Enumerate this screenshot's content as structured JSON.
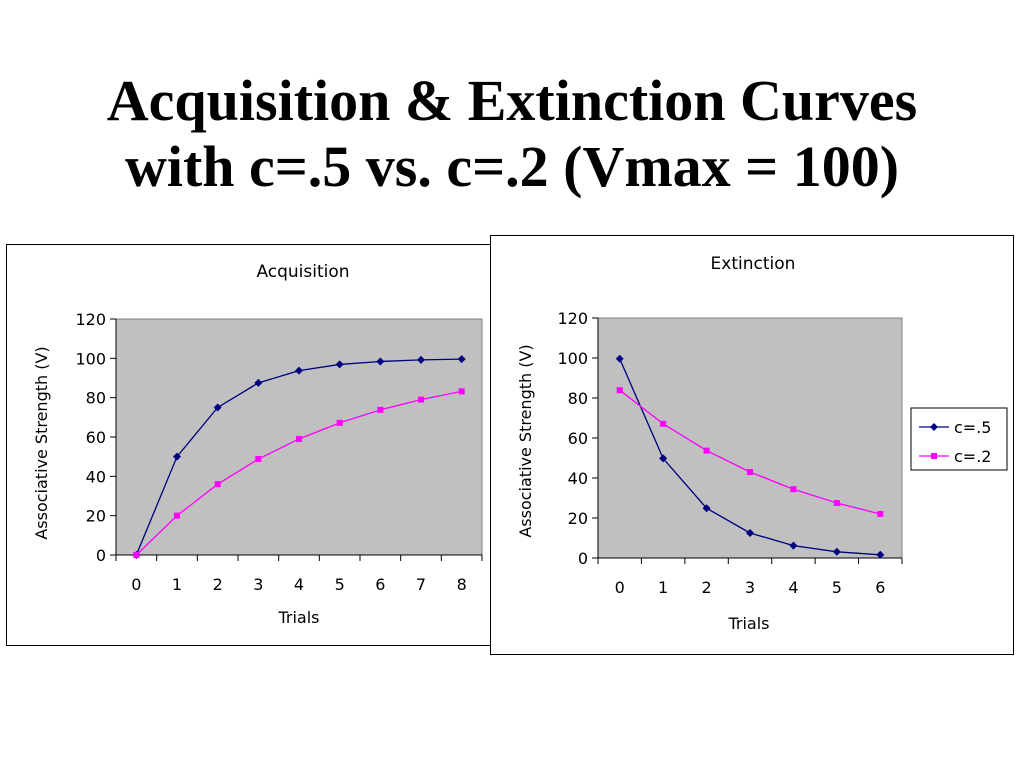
{
  "slide": {
    "title_line1": "Acquisition & Extinction Curves",
    "title_line2": "with c=.5 vs. c=.2 (Vmax = 100)"
  },
  "colors": {
    "plot_background": "#c0c0c0",
    "series_c5": "#000080",
    "series_c2": "#ff00ff"
  },
  "chart_data": [
    {
      "id": "acquisition",
      "type": "line",
      "title": "Acquisition",
      "xlabel": "Trials",
      "ylabel": "Associative Strength (V)",
      "categories": [
        "0",
        "1",
        "2",
        "3",
        "4",
        "5",
        "6",
        "7",
        "8"
      ],
      "ylim": [
        0,
        120
      ],
      "yticks": [
        0,
        20,
        40,
        60,
        80,
        100,
        120
      ],
      "grid": false,
      "legend": "none",
      "series": [
        {
          "color": "#000080",
          "marker": "diamond",
          "values": [
            0,
            50,
            75,
            87.5,
            93.75,
            96.9,
            98.4,
            99.2,
            99.6
          ]
        },
        {
          "color": "#ff00ff",
          "marker": "square",
          "values": [
            0,
            20,
            36,
            48.8,
            59,
            67.2,
            73.8,
            79,
            83.2
          ]
        }
      ]
    },
    {
      "id": "extinction",
      "type": "line",
      "title": "Extinction",
      "xlabel": "Trials",
      "ylabel": "Associative Strength (V)",
      "categories": [
        "0",
        "1",
        "2",
        "3",
        "4",
        "5",
        "6"
      ],
      "ylim": [
        0,
        120
      ],
      "yticks": [
        0,
        20,
        40,
        60,
        80,
        100,
        120
      ],
      "grid": false,
      "legend": "right",
      "series": [
        {
          "name": "c=.5",
          "color": "#000080",
          "marker": "diamond",
          "values": [
            99.6,
            49.8,
            24.9,
            12.5,
            6.2,
            3.1,
            1.6
          ]
        },
        {
          "name": "c=.2",
          "color": "#ff00ff",
          "marker": "square",
          "values": [
            83.9,
            67.1,
            53.7,
            43,
            34.4,
            27.5,
            22
          ]
        }
      ]
    }
  ]
}
